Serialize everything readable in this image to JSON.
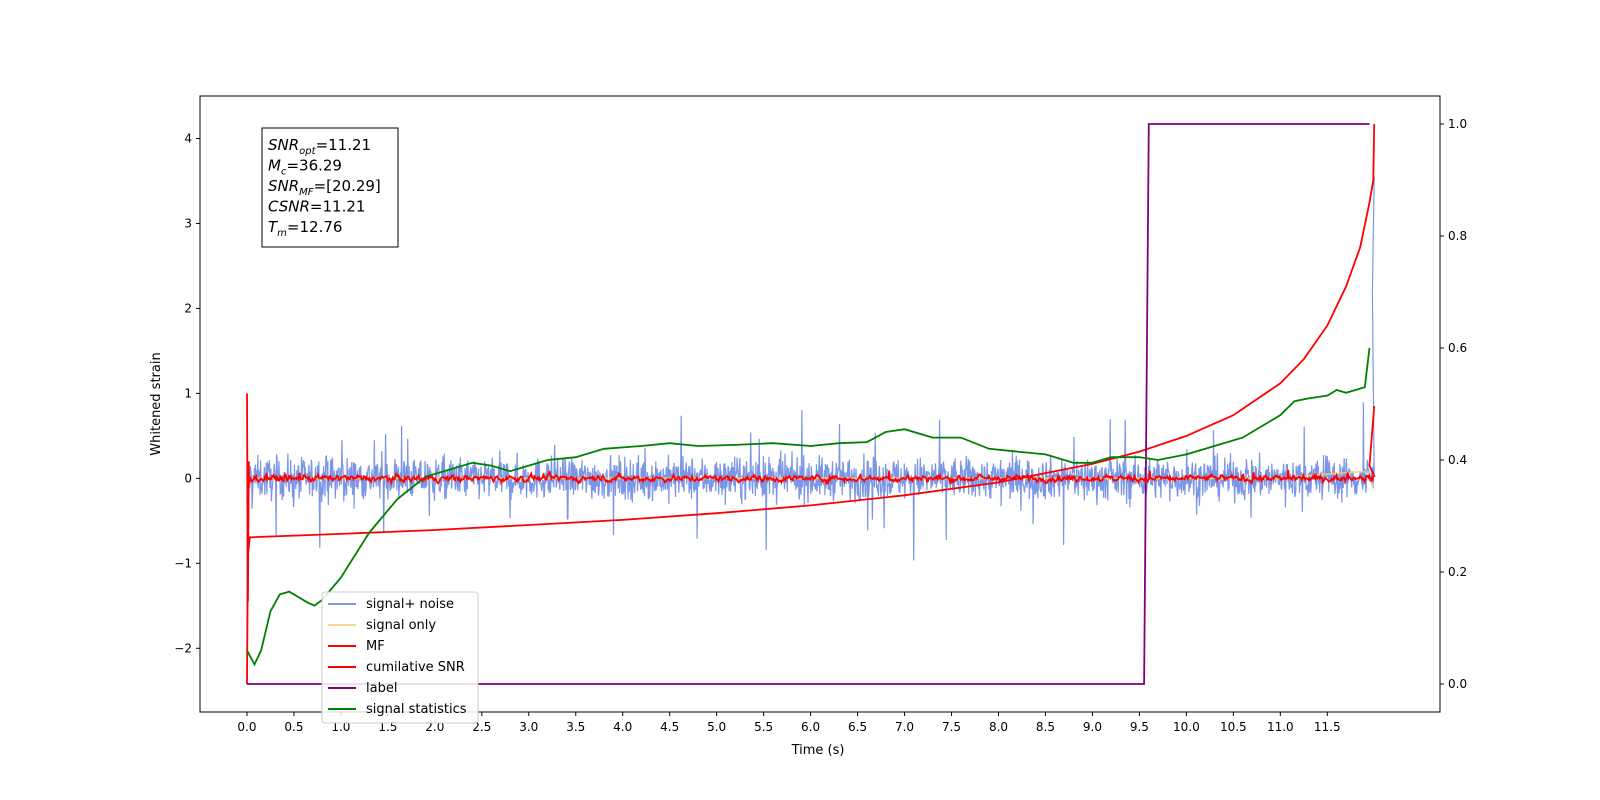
{
  "chart_data": {
    "type": "line",
    "xlabel": "Time (s)",
    "ylabel": "Whitened strain",
    "xlim": [
      -0.5,
      12.7
    ],
    "ylim_left": [
      -2.75,
      4.5
    ],
    "ylim_right": [
      -0.05,
      1.05
    ],
    "x_ticks": [
      0.0,
      0.5,
      1.0,
      1.5,
      2.0,
      2.5,
      3.0,
      3.5,
      4.0,
      4.5,
      5.0,
      5.5,
      6.0,
      6.5,
      7.0,
      7.5,
      8.0,
      8.5,
      9.0,
      9.5,
      10.0,
      10.5,
      11.0,
      11.5
    ],
    "x_tick_labels": [
      "0.0",
      "0.5",
      "1.0",
      "1.5",
      "2.0",
      "2.5",
      "3.0",
      "3.5",
      "4.0",
      "4.5",
      "5.0",
      "5.5",
      "6.0",
      "6.5",
      "7.0",
      "7.5",
      "8.0",
      "8.5",
      "9.0",
      "9.5",
      "10.0",
      "10.5",
      "11.0",
      "11.5"
    ],
    "y_left_ticks": [
      -2,
      -1,
      0,
      1,
      2,
      3,
      4
    ],
    "y_left_tick_labels": [
      "−2",
      "−1",
      "0",
      "1",
      "2",
      "3",
      "4"
    ],
    "y_right_ticks": [
      0.0,
      0.2,
      0.4,
      0.6,
      0.8,
      1.0
    ],
    "y_right_tick_labels": [
      "0.0",
      "0.2",
      "0.4",
      "0.6",
      "0.8",
      "1.0"
    ],
    "annotation": {
      "lines": [
        {
          "name": "SNR",
          "sub": "opt",
          "value": "=11.21"
        },
        {
          "name": "M",
          "sub": "c",
          "value": "=36.29"
        },
        {
          "name": "SNR",
          "sub": "MF",
          "value": "=[20.29]"
        },
        {
          "name": "CSNR",
          "sub": "",
          "value": "=11.21"
        },
        {
          "name": "T",
          "sub": "m",
          "value": "=12.76"
        }
      ]
    },
    "legend_position": "lower-left",
    "series": [
      {
        "name": "signal+ noise",
        "axis": "left",
        "color": "#7b96e6",
        "kind": "noise",
        "x_range": [
          0.0,
          12.0
        ],
        "amplitude": 0.75,
        "end_points": [
          [
            0.0,
            -2.42
          ],
          [
            11.98,
            2.2
          ],
          [
            12.0,
            3.55
          ]
        ]
      },
      {
        "name": "signal only",
        "axis": "left",
        "color": "#f5cf7d",
        "kind": "line",
        "points": [
          [
            0.0,
            -0.5
          ],
          [
            0.02,
            0.0
          ],
          [
            11.0,
            0.0
          ],
          [
            11.5,
            0.05
          ],
          [
            11.9,
            0.08
          ],
          [
            12.0,
            -0.1
          ]
        ]
      },
      {
        "name": "MF",
        "axis": "left",
        "color": "#ff0000",
        "kind": "noise",
        "x_range": [
          0.02,
          12.0
        ],
        "amplitude": 0.06,
        "end_points": [
          [
            0.0,
            1.0
          ],
          [
            0.01,
            -1.45
          ],
          [
            0.02,
            0.2
          ],
          [
            11.95,
            0.15
          ],
          [
            12.0,
            0.85
          ]
        ]
      },
      {
        "name": "cumilative SNR",
        "axis": "right",
        "color": "#ff0000",
        "kind": "line",
        "points": [
          [
            0.0,
            0.0
          ],
          [
            0.01,
            0.23
          ],
          [
            0.03,
            0.262
          ],
          [
            1.0,
            0.268
          ],
          [
            2.0,
            0.275
          ],
          [
            3.0,
            0.284
          ],
          [
            4.0,
            0.293
          ],
          [
            5.0,
            0.305
          ],
          [
            6.0,
            0.319
          ],
          [
            7.0,
            0.337
          ],
          [
            8.0,
            0.36
          ],
          [
            9.0,
            0.393
          ],
          [
            9.5,
            0.415
          ],
          [
            10.0,
            0.443
          ],
          [
            10.5,
            0.48
          ],
          [
            11.0,
            0.537
          ],
          [
            11.25,
            0.58
          ],
          [
            11.5,
            0.64
          ],
          [
            11.7,
            0.71
          ],
          [
            11.85,
            0.78
          ],
          [
            11.95,
            0.86
          ],
          [
            11.99,
            0.9
          ],
          [
            12.0,
            1.0
          ]
        ]
      },
      {
        "name": "label",
        "axis": "right",
        "color": "#800080",
        "kind": "line",
        "points": [
          [
            0.0,
            0.0
          ],
          [
            9.55,
            0.0
          ],
          [
            9.6,
            1.0
          ],
          [
            11.95,
            1.0
          ]
        ]
      },
      {
        "name": "signal statistics",
        "axis": "right",
        "color": "#008000",
        "kind": "line",
        "points": [
          [
            0.0,
            0.06
          ],
          [
            0.08,
            0.035
          ],
          [
            0.15,
            0.06
          ],
          [
            0.25,
            0.13
          ],
          [
            0.35,
            0.16
          ],
          [
            0.45,
            0.165
          ],
          [
            0.55,
            0.155
          ],
          [
            0.65,
            0.145
          ],
          [
            0.72,
            0.14
          ],
          [
            0.8,
            0.15
          ],
          [
            1.0,
            0.19
          ],
          [
            1.3,
            0.27
          ],
          [
            1.6,
            0.33
          ],
          [
            1.9,
            0.37
          ],
          [
            2.2,
            0.385
          ],
          [
            2.4,
            0.395
          ],
          [
            2.6,
            0.39
          ],
          [
            2.8,
            0.38
          ],
          [
            3.0,
            0.39
          ],
          [
            3.2,
            0.4
          ],
          [
            3.5,
            0.405
          ],
          [
            3.8,
            0.42
          ],
          [
            4.2,
            0.425
          ],
          [
            4.5,
            0.43
          ],
          [
            4.8,
            0.425
          ],
          [
            5.2,
            0.427
          ],
          [
            5.6,
            0.43
          ],
          [
            6.0,
            0.425
          ],
          [
            6.3,
            0.43
          ],
          [
            6.6,
            0.432
          ],
          [
            6.8,
            0.45
          ],
          [
            7.0,
            0.455
          ],
          [
            7.3,
            0.44
          ],
          [
            7.6,
            0.44
          ],
          [
            7.9,
            0.42
          ],
          [
            8.2,
            0.415
          ],
          [
            8.5,
            0.41
          ],
          [
            8.8,
            0.395
          ],
          [
            9.0,
            0.395
          ],
          [
            9.2,
            0.405
          ],
          [
            9.5,
            0.405
          ],
          [
            9.7,
            0.4
          ],
          [
            10.0,
            0.41
          ],
          [
            10.3,
            0.425
          ],
          [
            10.6,
            0.44
          ],
          [
            10.8,
            0.46
          ],
          [
            11.0,
            0.48
          ],
          [
            11.15,
            0.505
          ],
          [
            11.3,
            0.51
          ],
          [
            11.5,
            0.515
          ],
          [
            11.6,
            0.525
          ],
          [
            11.7,
            0.52
          ],
          [
            11.8,
            0.525
          ],
          [
            11.9,
            0.53
          ],
          [
            11.95,
            0.6
          ]
        ]
      }
    ]
  }
}
